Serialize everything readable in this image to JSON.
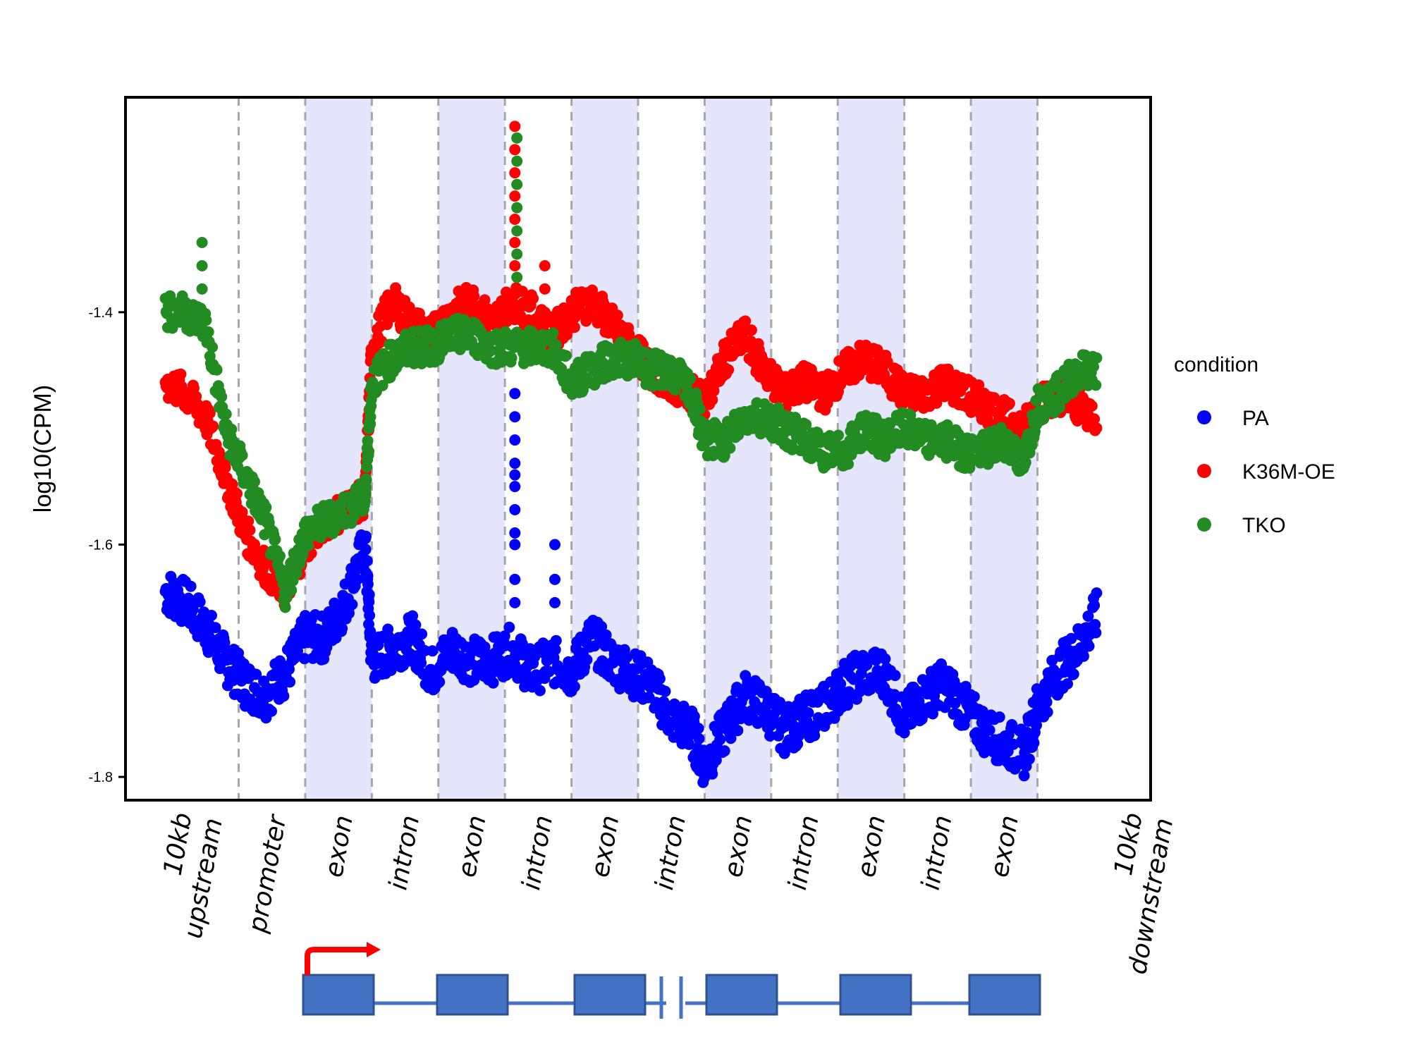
{
  "chart_data": {
    "type": "scatter",
    "title": "",
    "xlabel": "",
    "ylabel": "log10(CPM)",
    "ylim": [
      -1.82,
      -1.215
    ],
    "y_ticks": [
      "-1.4",
      "-1.6",
      "-1.8"
    ],
    "y_tick_values": [
      -1.4,
      -1.6,
      -1.8
    ],
    "grid": false,
    "segments": [
      {
        "label": "10kb\nupstream",
        "start": 0,
        "end": 1.7,
        "shaded": false
      },
      {
        "label": "promoter",
        "start": 1.7,
        "end": 2.7,
        "shaded": false
      },
      {
        "label": "exon",
        "start": 2.7,
        "end": 3.7,
        "shaded": true
      },
      {
        "label": "intron",
        "start": 3.7,
        "end": 4.7,
        "shaded": false
      },
      {
        "label": "exon",
        "start": 4.7,
        "end": 5.7,
        "shaded": true
      },
      {
        "label": "intron",
        "start": 5.7,
        "end": 6.7,
        "shaded": false
      },
      {
        "label": "exon",
        "start": 6.7,
        "end": 7.7,
        "shaded": true
      },
      {
        "label": "intron",
        "start": 7.7,
        "end": 8.7,
        "shaded": false
      },
      {
        "label": "exon",
        "start": 8.7,
        "end": 9.7,
        "shaded": true
      },
      {
        "label": "intron",
        "start": 9.7,
        "end": 10.7,
        "shaded": false
      },
      {
        "label": "exon",
        "start": 10.7,
        "end": 11.7,
        "shaded": true
      },
      {
        "label": "intron",
        "start": 11.7,
        "end": 12.7,
        "shaded": false
      },
      {
        "label": "exon",
        "start": 12.7,
        "end": 13.7,
        "shaded": true
      },
      {
        "label": "10kb\ndownstream",
        "start": 13.7,
        "end": 15.4,
        "shaded": false
      }
    ],
    "legend": {
      "title": "condition",
      "placement": "right"
    },
    "series": [
      {
        "name": "PA",
        "color": "#0000ff",
        "jitter": 0.02,
        "x": [
          0.6,
          0.9,
          1.2,
          1.5,
          1.8,
          2.1,
          2.4,
          2.7,
          3.0,
          3.3,
          3.6,
          3.7,
          4.0,
          4.3,
          4.6,
          4.9,
          5.2,
          5.5,
          5.8,
          6.1,
          6.4,
          6.7,
          7.0,
          7.3,
          7.6,
          7.9,
          8.2,
          8.5,
          8.7,
          9.0,
          9.3,
          9.6,
          9.9,
          10.2,
          10.5,
          10.8,
          11.1,
          11.4,
          11.7,
          12.0,
          12.3,
          12.6,
          12.9,
          13.2,
          13.5,
          13.7,
          14.0,
          14.3,
          14.6
        ],
        "y": [
          -1.64,
          -1.65,
          -1.67,
          -1.7,
          -1.72,
          -1.73,
          -1.71,
          -1.68,
          -1.68,
          -1.65,
          -1.6,
          -1.7,
          -1.69,
          -1.68,
          -1.71,
          -1.69,
          -1.7,
          -1.7,
          -1.69,
          -1.71,
          -1.7,
          -1.71,
          -1.68,
          -1.7,
          -1.71,
          -1.72,
          -1.75,
          -1.76,
          -1.79,
          -1.76,
          -1.73,
          -1.74,
          -1.76,
          -1.75,
          -1.74,
          -1.72,
          -1.71,
          -1.71,
          -1.75,
          -1.73,
          -1.72,
          -1.74,
          -1.76,
          -1.77,
          -1.78,
          -1.74,
          -1.71,
          -1.69,
          -1.66
        ]
      },
      {
        "name": "K36M-OE",
        "color": "#ff0000",
        "jitter": 0.015,
        "x": [
          0.6,
          0.9,
          1.2,
          1.5,
          1.8,
          2.1,
          2.4,
          2.7,
          3.0,
          3.3,
          3.6,
          3.7,
          4.0,
          4.3,
          4.6,
          4.9,
          5.2,
          5.5,
          5.8,
          6.1,
          6.4,
          6.7,
          7.0,
          7.3,
          7.6,
          7.9,
          8.2,
          8.5,
          8.7,
          9.0,
          9.3,
          9.6,
          9.9,
          10.2,
          10.5,
          10.8,
          11.1,
          11.4,
          11.7,
          12.0,
          12.3,
          12.6,
          12.9,
          13.2,
          13.5,
          13.7,
          14.0,
          14.3,
          14.6
        ],
        "y": [
          -1.46,
          -1.47,
          -1.49,
          -1.54,
          -1.59,
          -1.62,
          -1.64,
          -1.6,
          -1.58,
          -1.57,
          -1.56,
          -1.43,
          -1.39,
          -1.41,
          -1.42,
          -1.4,
          -1.39,
          -1.41,
          -1.39,
          -1.4,
          -1.42,
          -1.4,
          -1.39,
          -1.41,
          -1.43,
          -1.45,
          -1.46,
          -1.47,
          -1.48,
          -1.44,
          -1.42,
          -1.45,
          -1.47,
          -1.46,
          -1.47,
          -1.45,
          -1.44,
          -1.45,
          -1.47,
          -1.47,
          -1.46,
          -1.47,
          -1.48,
          -1.49,
          -1.5,
          -1.48,
          -1.47,
          -1.48,
          -1.49
        ]
      },
      {
        "name": "TKO",
        "color": "#228b22",
        "jitter": 0.015,
        "x": [
          0.6,
          0.9,
          1.2,
          1.5,
          1.8,
          2.1,
          2.4,
          2.7,
          3.0,
          3.3,
          3.6,
          3.7,
          4.0,
          4.3,
          4.6,
          4.9,
          5.2,
          5.5,
          5.8,
          6.1,
          6.4,
          6.7,
          7.0,
          7.3,
          7.6,
          7.9,
          8.2,
          8.5,
          8.7,
          9.0,
          9.3,
          9.6,
          9.9,
          10.2,
          10.5,
          10.8,
          11.1,
          11.4,
          11.7,
          12.0,
          12.3,
          12.6,
          12.9,
          13.2,
          13.5,
          13.7,
          14.0,
          14.3,
          14.6
        ],
        "y": [
          -1.4,
          -1.4,
          -1.41,
          -1.5,
          -1.54,
          -1.58,
          -1.64,
          -1.59,
          -1.58,
          -1.57,
          -1.56,
          -1.46,
          -1.44,
          -1.43,
          -1.43,
          -1.42,
          -1.42,
          -1.43,
          -1.43,
          -1.43,
          -1.43,
          -1.46,
          -1.45,
          -1.44,
          -1.44,
          -1.45,
          -1.45,
          -1.47,
          -1.51,
          -1.51,
          -1.49,
          -1.49,
          -1.5,
          -1.51,
          -1.52,
          -1.52,
          -1.5,
          -1.51,
          -1.5,
          -1.51,
          -1.51,
          -1.52,
          -1.52,
          -1.51,
          -1.53,
          -1.48,
          -1.47,
          -1.45,
          -1.45
        ]
      }
    ],
    "spikes": [
      {
        "series": "PA",
        "x": 5.85,
        "y": [
          -1.47,
          -1.49,
          -1.51,
          -1.53,
          -1.54,
          -1.55,
          -1.57,
          -1.59,
          -1.6,
          -1.63,
          -1.65
        ]
      },
      {
        "series": "PA",
        "x": 6.45,
        "y": [
          -1.6,
          -1.63,
          -1.65
        ]
      },
      {
        "series": "K36M-OE",
        "x": 5.85,
        "y": [
          -1.24,
          -1.26,
          -1.28,
          -1.3,
          -1.32,
          -1.34,
          -1.36
        ]
      },
      {
        "series": "K36M-OE",
        "x": 6.3,
        "y": [
          -1.36,
          -1.38,
          -1.4
        ]
      },
      {
        "series": "TKO",
        "x": 5.88,
        "y": [
          -1.25,
          -1.27,
          -1.29,
          -1.31,
          -1.33,
          -1.35,
          -1.37
        ]
      },
      {
        "series": "TKO",
        "x": 1.15,
        "y": [
          -1.34,
          -1.36,
          -1.38
        ]
      }
    ]
  }
}
